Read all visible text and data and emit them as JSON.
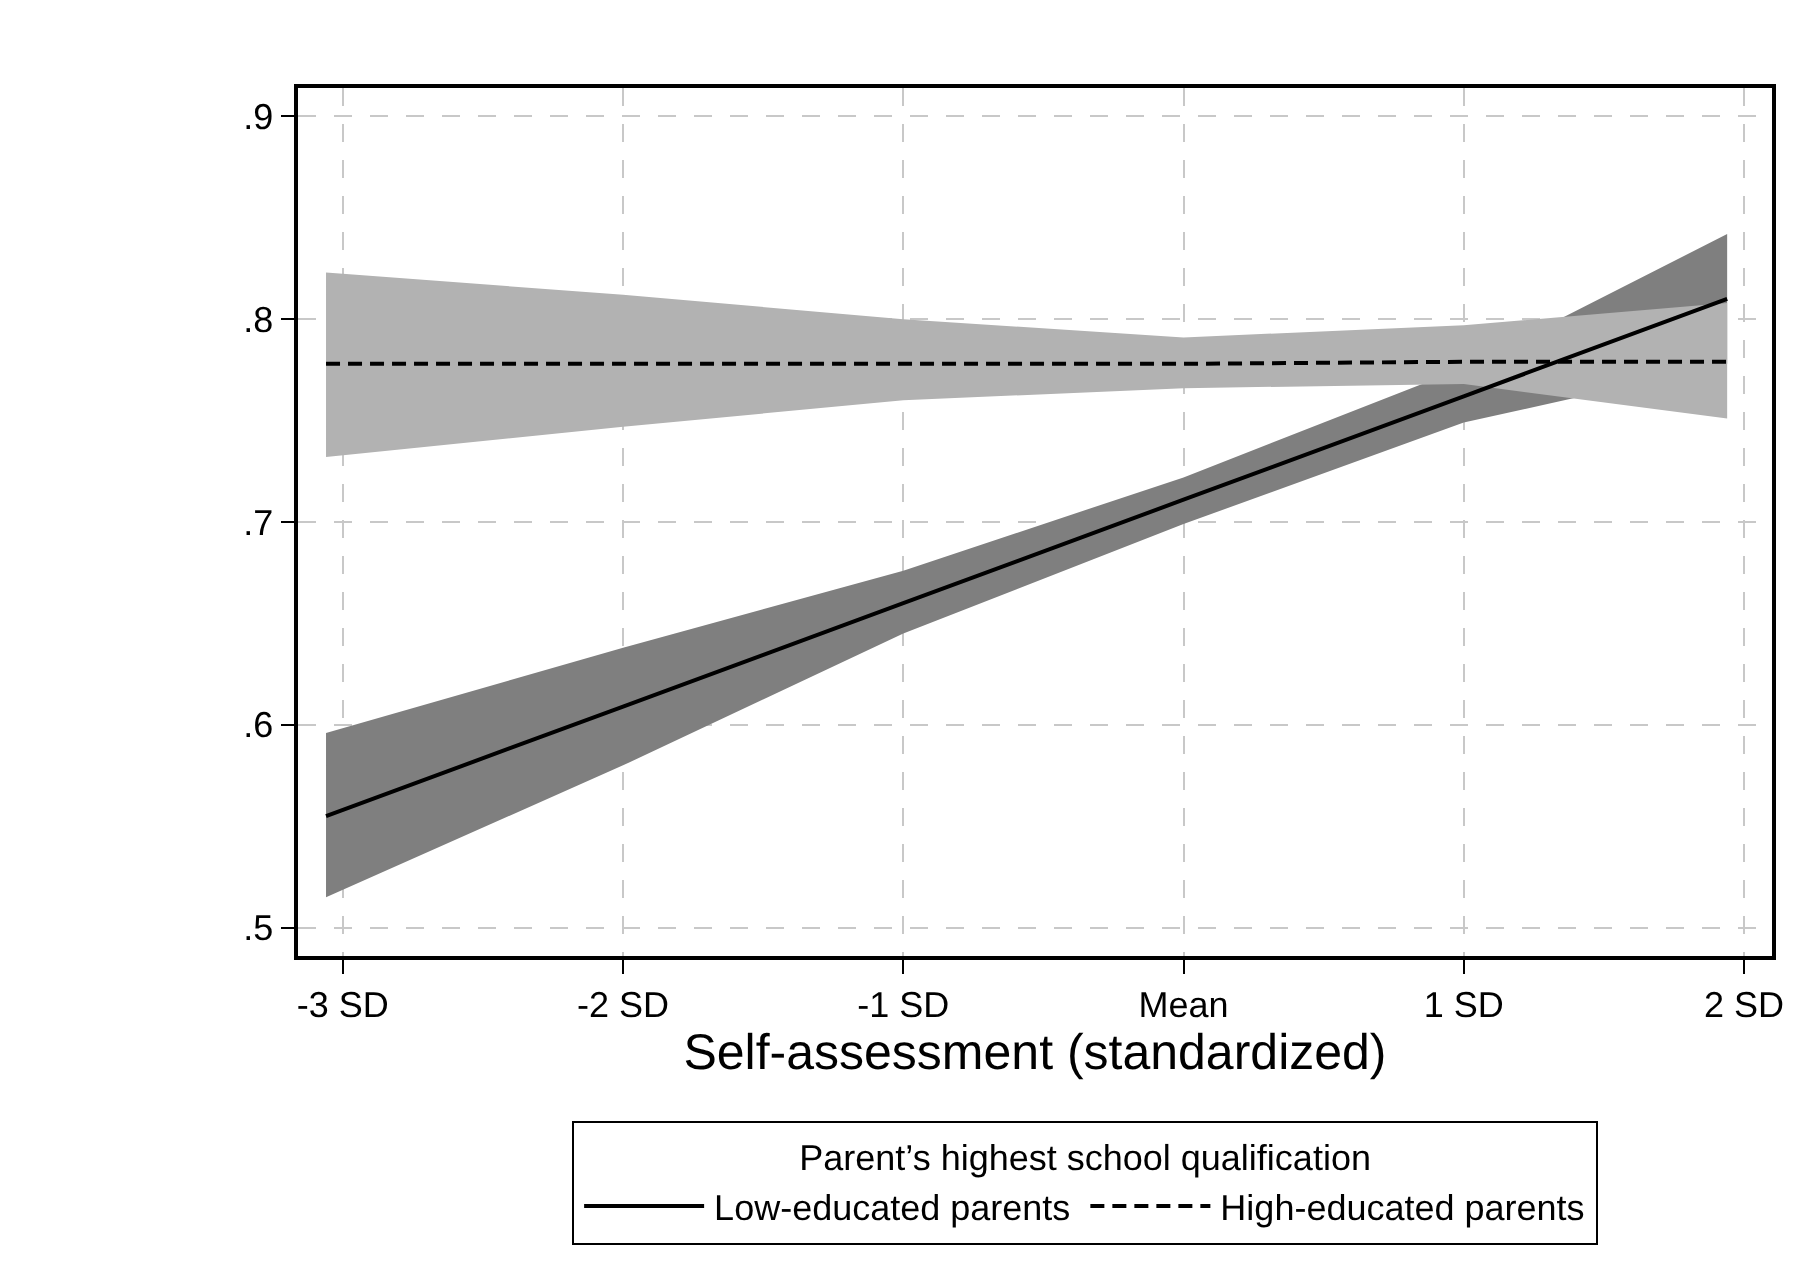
{
  "chart_data": {
    "type": "line",
    "xlabel": "Self-assessment (standardized)",
    "legend_title": "Parent’s highest school qualification",
    "x": [
      -3.06,
      -2,
      -1,
      0,
      1,
      1.94
    ],
    "series": [
      {
        "name": "Low-educated parents",
        "color": "#000000",
        "line_style": "solid",
        "values": [
          0.555,
          0.609,
          0.66,
          0.711,
          0.762,
          0.81
        ],
        "lower": [
          0.515,
          0.58,
          0.645,
          0.699,
          0.749,
          0.778
        ],
        "upper": [
          0.596,
          0.638,
          0.676,
          0.722,
          0.776,
          0.842
        ]
      },
      {
        "name": "High-educated parents",
        "color": "#000000",
        "line_style": "dashed",
        "values": [
          0.778,
          0.778,
          0.778,
          0.778,
          0.779,
          0.779
        ],
        "lower": [
          0.732,
          0.747,
          0.76,
          0.766,
          0.768,
          0.751
        ],
        "upper": [
          0.823,
          0.812,
          0.8,
          0.791,
          0.797,
          0.808
        ]
      }
    ],
    "xlim": [
      -3.16,
      2.1
    ],
    "xticks": [
      {
        "value": -3,
        "label": "-3 SD"
      },
      {
        "value": -2,
        "label": "-2 SD"
      },
      {
        "value": -1,
        "label": "-1 SD"
      },
      {
        "value": 0,
        "label": "Mean"
      },
      {
        "value": 1,
        "label": "1 SD"
      },
      {
        "value": 2,
        "label": "2 SD"
      }
    ],
    "ylim": [
      0.486,
      0.914
    ],
    "yticks": [
      {
        "value": 0.5,
        "label": ".5"
      },
      {
        "value": 0.6,
        "label": ".6"
      },
      {
        "value": 0.7,
        "label": ".7"
      },
      {
        "value": 0.8,
        "label": ".8"
      },
      {
        "value": 0.9,
        "label": ".9"
      }
    ],
    "grid": true,
    "legend": "bottom"
  }
}
